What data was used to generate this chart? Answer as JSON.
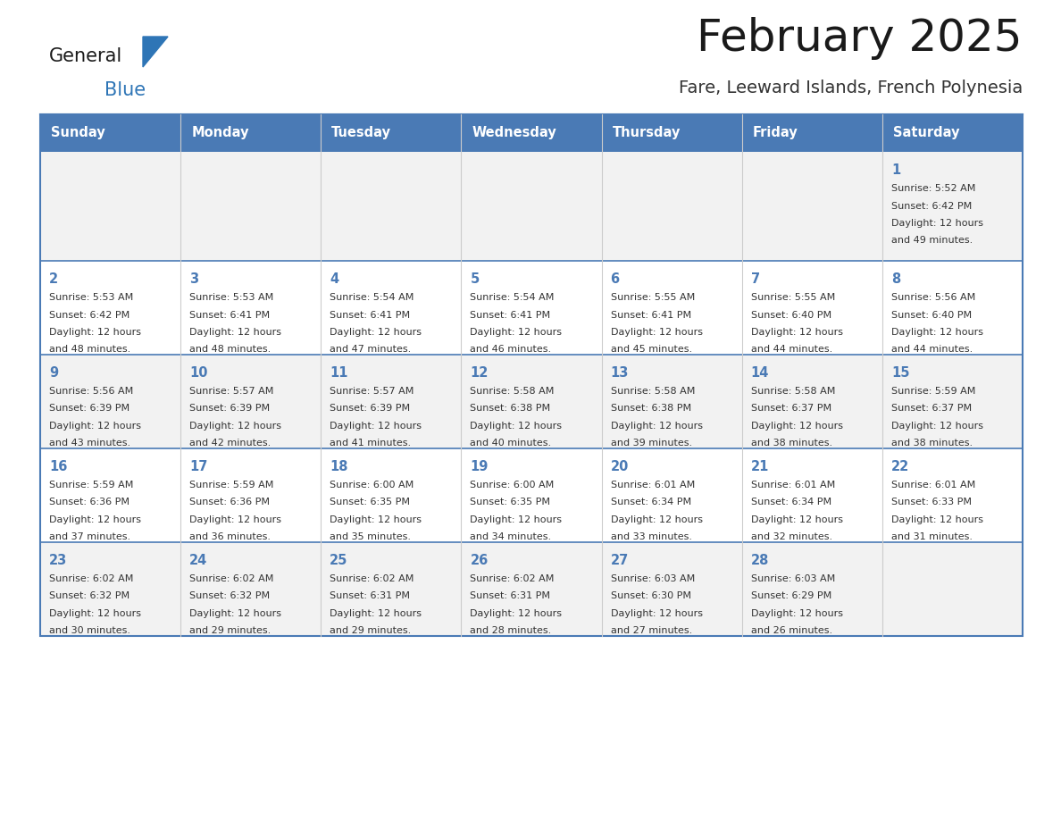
{
  "title": "February 2025",
  "subtitle": "Fare, Leeward Islands, French Polynesia",
  "days_of_week": [
    "Sunday",
    "Monday",
    "Tuesday",
    "Wednesday",
    "Thursday",
    "Friday",
    "Saturday"
  ],
  "header_bg": "#4a7ab5",
  "header_text": "#ffffff",
  "row0_bg": "#f2f2f2",
  "row1_bg": "#ffffff",
  "row2_bg": "#f2f2f2",
  "row3_bg": "#ffffff",
  "row4_bg": "#f2f2f2",
  "cell_border_color": "#4a7ab5",
  "cell_inner_border_color": "#cccccc",
  "day_number_color": "#4a7ab5",
  "info_text_color": "#333333",
  "title_color": "#1a1a1a",
  "subtitle_color": "#333333",
  "logo_general_color": "#1a1a1a",
  "logo_blue_color": "#2e75b6",
  "logo_triangle_color": "#2e75b6",
  "calendar_data": [
    [
      null,
      null,
      null,
      null,
      null,
      null,
      {
        "day": 1,
        "sunrise": "5:52 AM",
        "sunset": "6:42 PM",
        "daylight": "12 hours and 49 minutes."
      }
    ],
    [
      {
        "day": 2,
        "sunrise": "5:53 AM",
        "sunset": "6:42 PM",
        "daylight": "12 hours and 48 minutes."
      },
      {
        "day": 3,
        "sunrise": "5:53 AM",
        "sunset": "6:41 PM",
        "daylight": "12 hours and 48 minutes."
      },
      {
        "day": 4,
        "sunrise": "5:54 AM",
        "sunset": "6:41 PM",
        "daylight": "12 hours and 47 minutes."
      },
      {
        "day": 5,
        "sunrise": "5:54 AM",
        "sunset": "6:41 PM",
        "daylight": "12 hours and 46 minutes."
      },
      {
        "day": 6,
        "sunrise": "5:55 AM",
        "sunset": "6:41 PM",
        "daylight": "12 hours and 45 minutes."
      },
      {
        "day": 7,
        "sunrise": "5:55 AM",
        "sunset": "6:40 PM",
        "daylight": "12 hours and 44 minutes."
      },
      {
        "day": 8,
        "sunrise": "5:56 AM",
        "sunset": "6:40 PM",
        "daylight": "12 hours and 44 minutes."
      }
    ],
    [
      {
        "day": 9,
        "sunrise": "5:56 AM",
        "sunset": "6:39 PM",
        "daylight": "12 hours and 43 minutes."
      },
      {
        "day": 10,
        "sunrise": "5:57 AM",
        "sunset": "6:39 PM",
        "daylight": "12 hours and 42 minutes."
      },
      {
        "day": 11,
        "sunrise": "5:57 AM",
        "sunset": "6:39 PM",
        "daylight": "12 hours and 41 minutes."
      },
      {
        "day": 12,
        "sunrise": "5:58 AM",
        "sunset": "6:38 PM",
        "daylight": "12 hours and 40 minutes."
      },
      {
        "day": 13,
        "sunrise": "5:58 AM",
        "sunset": "6:38 PM",
        "daylight": "12 hours and 39 minutes."
      },
      {
        "day": 14,
        "sunrise": "5:58 AM",
        "sunset": "6:37 PM",
        "daylight": "12 hours and 38 minutes."
      },
      {
        "day": 15,
        "sunrise": "5:59 AM",
        "sunset": "6:37 PM",
        "daylight": "12 hours and 38 minutes."
      }
    ],
    [
      {
        "day": 16,
        "sunrise": "5:59 AM",
        "sunset": "6:36 PM",
        "daylight": "12 hours and 37 minutes."
      },
      {
        "day": 17,
        "sunrise": "5:59 AM",
        "sunset": "6:36 PM",
        "daylight": "12 hours and 36 minutes."
      },
      {
        "day": 18,
        "sunrise": "6:00 AM",
        "sunset": "6:35 PM",
        "daylight": "12 hours and 35 minutes."
      },
      {
        "day": 19,
        "sunrise": "6:00 AM",
        "sunset": "6:35 PM",
        "daylight": "12 hours and 34 minutes."
      },
      {
        "day": 20,
        "sunrise": "6:01 AM",
        "sunset": "6:34 PM",
        "daylight": "12 hours and 33 minutes."
      },
      {
        "day": 21,
        "sunrise": "6:01 AM",
        "sunset": "6:34 PM",
        "daylight": "12 hours and 32 minutes."
      },
      {
        "day": 22,
        "sunrise": "6:01 AM",
        "sunset": "6:33 PM",
        "daylight": "12 hours and 31 minutes."
      }
    ],
    [
      {
        "day": 23,
        "sunrise": "6:02 AM",
        "sunset": "6:32 PM",
        "daylight": "12 hours and 30 minutes."
      },
      {
        "day": 24,
        "sunrise": "6:02 AM",
        "sunset": "6:32 PM",
        "daylight": "12 hours and 29 minutes."
      },
      {
        "day": 25,
        "sunrise": "6:02 AM",
        "sunset": "6:31 PM",
        "daylight": "12 hours and 29 minutes."
      },
      {
        "day": 26,
        "sunrise": "6:02 AM",
        "sunset": "6:31 PM",
        "daylight": "12 hours and 28 minutes."
      },
      {
        "day": 27,
        "sunrise": "6:03 AM",
        "sunset": "6:30 PM",
        "daylight": "12 hours and 27 minutes."
      },
      {
        "day": 28,
        "sunrise": "6:03 AM",
        "sunset": "6:29 PM",
        "daylight": "12 hours and 26 minutes."
      },
      null
    ]
  ]
}
